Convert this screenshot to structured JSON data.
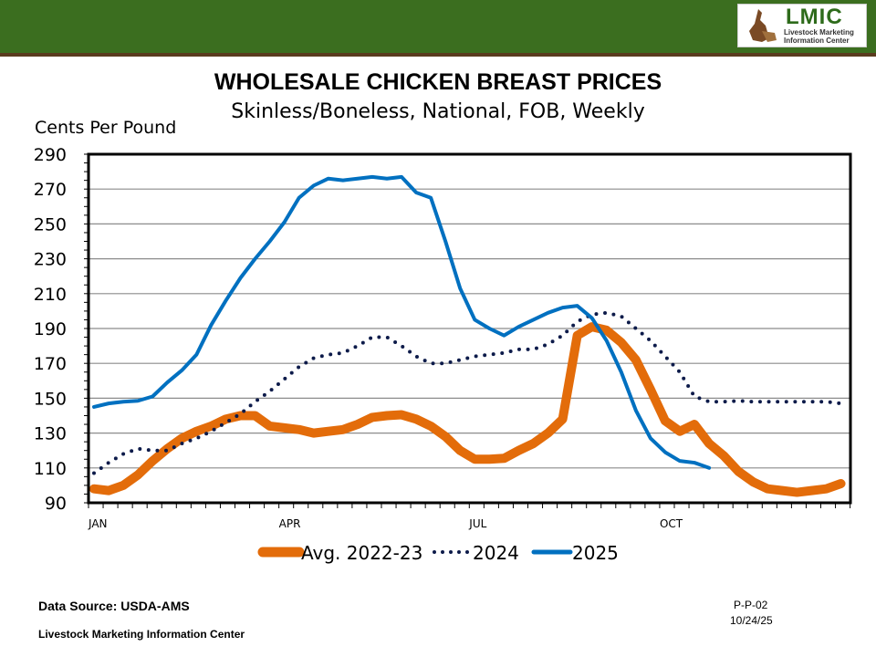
{
  "header": {
    "logo_text": "LMIC",
    "logo_subtext": [
      "Livestock Marketing",
      "Information Center"
    ]
  },
  "footer": {
    "source": "Data Source:  USDA-AMS",
    "org": "Livestock Marketing Information Center",
    "code": "P-P-02",
    "date": "10/24/25"
  },
  "chart_data": {
    "type": "line",
    "title": "WHOLESALE CHICKEN BREAST PRICES",
    "subtitle": "Skinless/Boneless, National, FOB, Weekly",
    "ylabel": "Cents Per Pound",
    "xlabel": "",
    "ylim": [
      90,
      290
    ],
    "yticks": [
      90,
      110,
      130,
      150,
      170,
      190,
      210,
      230,
      250,
      270,
      290
    ],
    "xlim": [
      1,
      52
    ],
    "xtick_labels": [
      {
        "week": 1,
        "label": "JAN"
      },
      {
        "week": 14,
        "label": "APR"
      },
      {
        "week": 27,
        "label": "JUL"
      },
      {
        "week": 40,
        "label": "OCT"
      }
    ],
    "grid": true,
    "legend": "bottom",
    "x_unit": "week",
    "series": [
      {
        "name": "Avg. 2022-23",
        "color": "#e36c0a",
        "style": "thick-solid",
        "values": [
          98,
          97,
          100,
          106,
          114,
          121,
          127,
          131,
          134,
          138,
          140,
          140,
          134,
          133,
          132,
          130,
          131,
          132,
          135,
          139,
          140,
          140.5,
          138,
          134,
          128,
          120,
          115,
          115,
          115.5,
          120,
          124,
          130,
          138,
          186,
          191,
          189,
          182,
          172,
          155,
          137,
          131,
          135,
          124,
          117,
          108,
          102,
          98,
          97,
          96,
          97,
          98,
          101
        ]
      },
      {
        "name": "2024",
        "color": "#0d1b4a",
        "style": "dotted",
        "values": [
          107,
          113,
          118,
          121,
          120,
          120,
          124,
          127,
          131,
          136,
          141,
          148,
          154,
          161,
          168,
          173,
          175,
          176,
          180,
          185,
          185,
          180,
          174,
          170,
          170,
          172,
          174,
          175,
          176,
          178,
          178,
          181,
          186,
          194,
          198,
          199,
          197,
          190,
          183,
          174,
          165,
          151,
          148,
          148,
          148.5,
          148,
          148,
          148,
          148,
          148,
          148,
          147
        ]
      },
      {
        "name": "2025",
        "color": "#0070c0",
        "style": "solid",
        "values": [
          145,
          147,
          148,
          148.5,
          151,
          159,
          166,
          175,
          192,
          206,
          219,
          230,
          240,
          251,
          265,
          272,
          276,
          275,
          276,
          277,
          276,
          277,
          268,
          265,
          240,
          213,
          195,
          190,
          186,
          191,
          195,
          199,
          202,
          203,
          196,
          183,
          165,
          143,
          127,
          119,
          114,
          113,
          110
        ]
      }
    ]
  }
}
